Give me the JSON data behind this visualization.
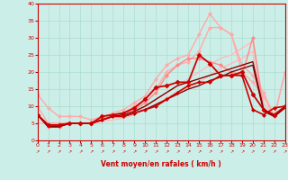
{
  "title": "",
  "xlabel": "Vent moyen/en rafales ( km/h )",
  "ylabel": "",
  "background_color": "#cceee8",
  "grid_color": "#aaddcc",
  "x_min": 0,
  "x_max": 23,
  "y_min": 0,
  "y_max": 40,
  "lines": [
    {
      "comment": "light pink top line with diamonds - peaks around 37 at x=16",
      "x": [
        0,
        1,
        2,
        3,
        4,
        5,
        6,
        7,
        8,
        9,
        10,
        11,
        12,
        13,
        14,
        15,
        16,
        17,
        18,
        19,
        20,
        21,
        22,
        23
      ],
      "y": [
        13.5,
        9.5,
        7,
        7,
        7,
        6,
        7,
        8,
        9,
        11,
        13,
        18,
        22,
        24,
        25,
        31,
        37,
        33,
        31,
        20,
        17,
        13,
        7,
        20
      ],
      "color": "#ffaaaa",
      "lw": 1.0,
      "marker": "D",
      "ms": 2.0,
      "zorder": 2
    },
    {
      "comment": "light pink second line with diamonds - peaks around 33 at x=16-17",
      "x": [
        0,
        1,
        2,
        3,
        4,
        5,
        6,
        7,
        8,
        9,
        10,
        11,
        12,
        13,
        14,
        15,
        16,
        17,
        18,
        19,
        20,
        21,
        22,
        23
      ],
      "y": [
        10,
        5,
        5,
        5,
        5,
        5,
        6,
        7,
        8,
        10,
        12,
        15,
        20,
        22,
        23,
        26,
        33,
        33,
        31,
        22,
        19,
        14,
        7,
        20
      ],
      "color": "#ffaaaa",
      "lw": 1.0,
      "marker": "D",
      "ms": 2.0,
      "zorder": 2
    },
    {
      "comment": "medium pink line with diamonds - peaks ~30 at x=20",
      "x": [
        0,
        1,
        2,
        3,
        4,
        5,
        6,
        7,
        8,
        9,
        10,
        11,
        12,
        13,
        14,
        15,
        16,
        17,
        18,
        19,
        20,
        21,
        22,
        23
      ],
      "y": [
        7.5,
        4,
        4,
        5,
        5,
        5,
        6,
        7.5,
        8,
        9,
        11,
        14,
        19,
        22,
        24,
        24,
        23,
        22,
        20,
        19,
        30,
        9,
        7,
        10
      ],
      "color": "#ff8888",
      "lw": 1.0,
      "marker": "D",
      "ms": 2.0,
      "zorder": 3
    },
    {
      "comment": "straight rising light pink line (no marker) - goes from ~5 to ~30",
      "x": [
        0,
        1,
        2,
        3,
        4,
        5,
        6,
        7,
        8,
        9,
        10,
        11,
        12,
        13,
        14,
        15,
        16,
        17,
        18,
        19,
        20,
        21,
        22,
        23
      ],
      "y": [
        5,
        5,
        5,
        5,
        5,
        5,
        6,
        7,
        7.5,
        8.5,
        10,
        12,
        14,
        16,
        18,
        20,
        22,
        24,
        25,
        27,
        29,
        11,
        7,
        10
      ],
      "color": "#ffbbbb",
      "lw": 1.0,
      "marker": null,
      "ms": 0,
      "zorder": 1
    },
    {
      "comment": "straight rising light pink line (no marker) - goes from ~5 to ~25",
      "x": [
        0,
        1,
        2,
        3,
        4,
        5,
        6,
        7,
        8,
        9,
        10,
        11,
        12,
        13,
        14,
        15,
        16,
        17,
        18,
        19,
        20,
        21,
        22,
        23
      ],
      "y": [
        5,
        5,
        5,
        5,
        5,
        5,
        5.5,
        6,
        6.5,
        7.5,
        9,
        10.5,
        12.5,
        14,
        15.5,
        17,
        19,
        21,
        22.5,
        24,
        26,
        9,
        7,
        10
      ],
      "color": "#ffbbbb",
      "lw": 1.0,
      "marker": null,
      "ms": 0,
      "zorder": 1
    },
    {
      "comment": "dark red line with diamonds/crosses - peaks ~25 at x=15",
      "x": [
        0,
        1,
        2,
        3,
        4,
        5,
        6,
        7,
        8,
        9,
        10,
        11,
        12,
        13,
        14,
        15,
        16,
        17,
        18,
        19,
        20,
        21,
        22,
        23
      ],
      "y": [
        7.5,
        4.5,
        4.5,
        5,
        5,
        5,
        7,
        7.5,
        8,
        9.5,
        12,
        15.5,
        16,
        17,
        17,
        25,
        22.5,
        19,
        19,
        20,
        13.5,
        9,
        7.5,
        10
      ],
      "color": "#cc0000",
      "lw": 1.3,
      "marker": "D",
      "ms": 2.5,
      "zorder": 6
    },
    {
      "comment": "dark red line with small markers - moderate rise to ~19",
      "x": [
        0,
        1,
        2,
        3,
        4,
        5,
        6,
        7,
        8,
        9,
        10,
        11,
        12,
        13,
        14,
        15,
        16,
        17,
        18,
        19,
        20,
        21,
        22,
        23
      ],
      "y": [
        7.5,
        4.5,
        4.5,
        5,
        5,
        5,
        6,
        7,
        7,
        8,
        9,
        10,
        12,
        14,
        16,
        17,
        17,
        19,
        19,
        19,
        9,
        7.5,
        9.5,
        10
      ],
      "color": "#cc0000",
      "lw": 1.2,
      "marker": "D",
      "ms": 2.0,
      "zorder": 5
    },
    {
      "comment": "dark red plain line - gentle rise to ~20",
      "x": [
        0,
        1,
        2,
        3,
        4,
        5,
        6,
        7,
        8,
        9,
        10,
        11,
        12,
        13,
        14,
        15,
        16,
        17,
        18,
        19,
        20,
        21,
        22,
        23
      ],
      "y": [
        7.5,
        4,
        4,
        5,
        5,
        5,
        6,
        7,
        7.5,
        8.5,
        10,
        12,
        14,
        16,
        17,
        18,
        19,
        20,
        21,
        22,
        23,
        9,
        7,
        10
      ],
      "color": "#880000",
      "lw": 1.0,
      "marker": null,
      "ms": 0,
      "zorder": 4
    },
    {
      "comment": "dark red plain line - gentle rise to ~18",
      "x": [
        0,
        1,
        2,
        3,
        4,
        5,
        6,
        7,
        8,
        9,
        10,
        11,
        12,
        13,
        14,
        15,
        16,
        17,
        18,
        19,
        20,
        21,
        22,
        23
      ],
      "y": [
        7.5,
        4,
        4,
        5,
        5,
        5,
        6,
        7,
        7,
        8,
        9,
        10.5,
        12,
        13.5,
        15,
        16,
        17.5,
        18.5,
        20,
        21,
        22,
        8.5,
        7,
        9.5
      ],
      "color": "#880000",
      "lw": 1.0,
      "marker": null,
      "ms": 0,
      "zorder": 4
    }
  ],
  "yticks": [
    0,
    5,
    10,
    15,
    20,
    25,
    30,
    35,
    40
  ],
  "xticks": [
    0,
    1,
    2,
    3,
    4,
    5,
    6,
    7,
    8,
    9,
    10,
    11,
    12,
    13,
    14,
    15,
    16,
    17,
    18,
    19,
    20,
    21,
    22,
    23
  ]
}
